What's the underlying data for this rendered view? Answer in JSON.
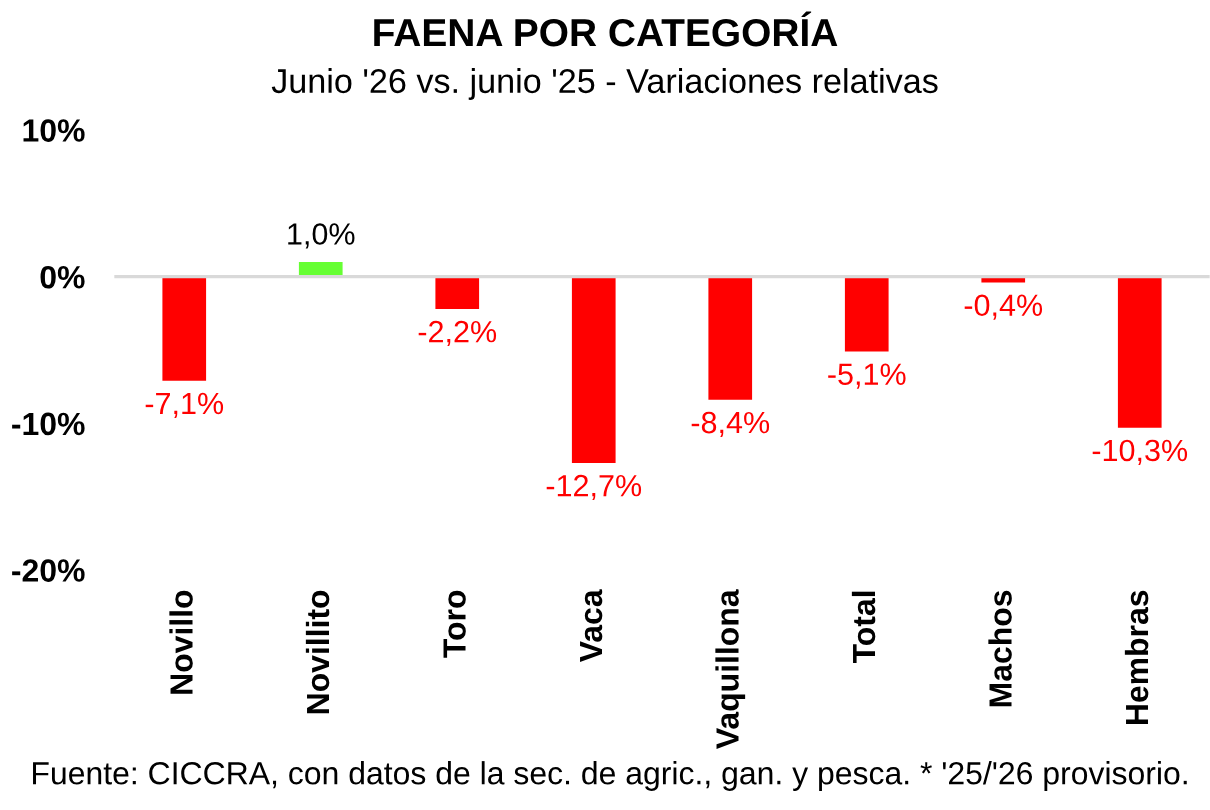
{
  "chart_data": {
    "type": "bar",
    "title": "FAENA POR CATEGORÍA",
    "subtitle": "Junio '26 vs. junio '25 - Variaciones relativas",
    "categories": [
      "Novillo",
      "Novillito",
      "Toro",
      "Vaca",
      "Vaquillona",
      "Total",
      "Machos",
      "Hembras"
    ],
    "values": [
      -7.1,
      1.0,
      -2.2,
      -12.7,
      -8.4,
      -5.1,
      -0.4,
      -10.3
    ],
    "colors": [
      "#ff0000",
      "#66ff33",
      "#ff0000",
      "#ff0000",
      "#ff0000",
      "#ff0000",
      "#ff0000",
      "#ff0000"
    ],
    "value_labels": [
      "-7,1%",
      "1,0%",
      "-2,2%",
      "-12,7%",
      "-8,4%",
      "-5,1%",
      "-0,4%",
      "-10,3%"
    ],
    "ylim": [
      -20,
      10
    ],
    "yticks": [
      {
        "value": 10,
        "label": "10%"
      },
      {
        "value": 0,
        "label": "0%"
      },
      {
        "value": -10,
        "label": "-10%"
      },
      {
        "value": -20,
        "label": "-20%"
      }
    ],
    "annotations": [
      "Fuente: CICCRA, con datos de la sec. de agric., gan. y pesca. * '25/'26 provisorio."
    ]
  }
}
